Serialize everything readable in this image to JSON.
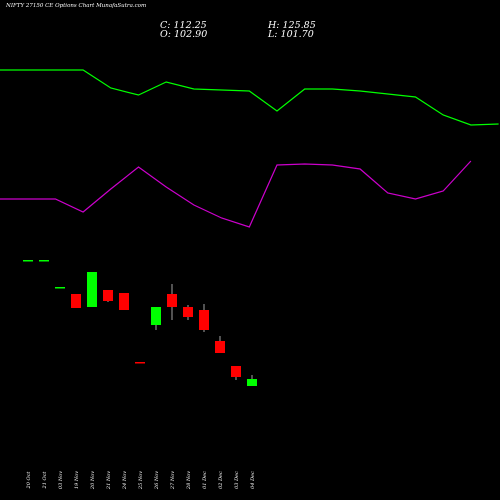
{
  "header": {
    "title": "NIFTY 27150  CE Options  Chart MunafaSutra.com",
    "open": "O: 102.90",
    "high": "H: 125.85",
    "low": "L: 101.70",
    "close": "C: 112.25"
  },
  "chart_data": {
    "type": "candlestick",
    "categories": [
      "20 Oct",
      "21 Oct",
      "03 Nov",
      "19 Nov",
      "20 Nov",
      "21 Nov",
      "24 Nov",
      "25 Nov",
      "26 Nov",
      "27 Nov",
      "28 Nov",
      "01 Dec",
      "02 Dec",
      "03 Dec",
      "04 Dec"
    ],
    "candles": [
      {
        "o": 190,
        "h": 190,
        "l": 190,
        "c": 190,
        "color": "#00ff00"
      },
      {
        "o": 190,
        "h": 190,
        "l": 190,
        "c": 190,
        "color": "#00ff00"
      },
      {
        "o": 163,
        "h": 163,
        "l": 163,
        "c": 163,
        "color": "#00ff00"
      },
      {
        "o": 156,
        "h": 156,
        "l": 142,
        "c": 142,
        "color": "#ff0000"
      },
      {
        "o": 143,
        "h": 178,
        "l": 143,
        "c": 178,
        "color": "#00ff00"
      },
      {
        "o": 160,
        "h": 160,
        "l": 148,
        "c": 149,
        "color": "#ff0000"
      },
      {
        "o": 157,
        "h": 157,
        "l": 140,
        "c": 140,
        "color": "#ff0000"
      },
      {
        "o": 88,
        "h": 88,
        "l": 88,
        "c": 88,
        "color": "#ff0000"
      },
      {
        "o": 125,
        "h": 143,
        "l": 120,
        "c": 143,
        "color": "#00ff00"
      },
      {
        "o": 156,
        "h": 166,
        "l": 130,
        "c": 143,
        "color": "#ff0000"
      },
      {
        "o": 143,
        "h": 145,
        "l": 130,
        "c": 133,
        "color": "#ff0000"
      },
      {
        "o": 140,
        "h": 146,
        "l": 118,
        "c": 120,
        "color": "#ff0000"
      },
      {
        "o": 109,
        "h": 114,
        "l": 97,
        "c": 97,
        "color": "#ff0000"
      },
      {
        "o": 84,
        "h": 84,
        "l": 70,
        "c": 73,
        "color": "#ff0000"
      },
      {
        "o": 64,
        "h": 75,
        "l": 64,
        "c": 71,
        "color": "#00ff00"
      }
    ],
    "indicators": [
      {
        "color": "#00ff00",
        "values": [
          10,
          10,
          10,
          10,
          -8,
          -15,
          -2,
          -9,
          -10,
          -11,
          -31,
          -9,
          -9,
          -11,
          -14,
          -17,
          -35,
          -45,
          -44
        ]
      },
      {
        "color": "#cc00cc",
        "values": [
          -34,
          -34,
          -34,
          -47,
          -24,
          -2,
          -22,
          -40,
          -53,
          -62,
          0,
          1,
          0,
          -4,
          -28,
          -34,
          -26,
          4
        ]
      }
    ]
  }
}
